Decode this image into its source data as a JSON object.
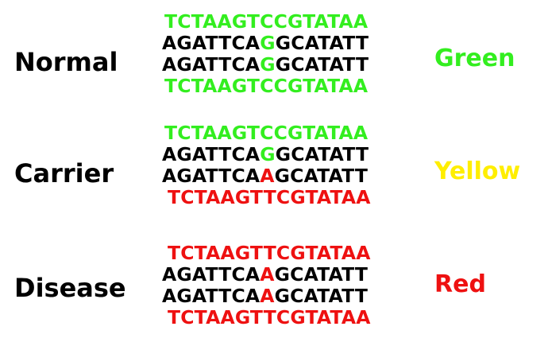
{
  "colors": {
    "green": "#33ee1f",
    "yellow": "#ffee00",
    "red": "#ee1111",
    "black": "#000000"
  },
  "groups": [
    {
      "label": "Normal",
      "color_word": "Green",
      "color_word_color": "#33ee1f",
      "strands": [
        {
          "pos": "top",
          "segments": [
            {
              "text": "TCTAAGTCCGTATAA",
              "color": "#33ee1f"
            }
          ]
        },
        {
          "pos": "middle",
          "segments": [
            {
              "text": "AGATTCA",
              "color": "#000000"
            },
            {
              "text": "G",
              "color": "#33ee1f"
            },
            {
              "text": "GCATATT",
              "color": "#000000"
            }
          ]
        },
        {
          "pos": "middle",
          "segments": [
            {
              "text": "AGATTCA",
              "color": "#000000"
            },
            {
              "text": "G",
              "color": "#33ee1f"
            },
            {
              "text": "GCATATT",
              "color": "#000000"
            }
          ]
        },
        {
          "pos": "bottom",
          "segments": [
            {
              "text": "TCTAAGTCCGTATAA",
              "color": "#33ee1f"
            }
          ]
        }
      ]
    },
    {
      "label": "Carrier",
      "color_word": "Yellow",
      "color_word_color": "#ffee00",
      "strands": [
        {
          "pos": "top",
          "segments": [
            {
              "text": "TCTAAGTCCGTATAA",
              "color": "#33ee1f"
            }
          ]
        },
        {
          "pos": "middle",
          "segments": [
            {
              "text": "AGATTCA",
              "color": "#000000"
            },
            {
              "text": "G",
              "color": "#33ee1f"
            },
            {
              "text": "GCATATT",
              "color": "#000000"
            }
          ]
        },
        {
          "pos": "middle",
          "segments": [
            {
              "text": "AGATTCA",
              "color": "#000000"
            },
            {
              "text": "A",
              "color": "#ee1111"
            },
            {
              "text": "GCATATT",
              "color": "#000000"
            }
          ]
        },
        {
          "pos": "bottom",
          "segments": [
            {
              "text": "TCTAAGTTCGTATAA",
              "color": "#ee1111"
            }
          ]
        }
      ]
    },
    {
      "label": "Disease",
      "color_word": "Red",
      "color_word_color": "#ee1111",
      "strands": [
        {
          "pos": "top",
          "segments": [
            {
              "text": "TCTAAGTTCGTATAA",
              "color": "#ee1111"
            }
          ]
        },
        {
          "pos": "middle",
          "segments": [
            {
              "text": "AGATTCA",
              "color": "#000000"
            },
            {
              "text": "A",
              "color": "#ee1111"
            },
            {
              "text": "GCATATT",
              "color": "#000000"
            }
          ]
        },
        {
          "pos": "middle",
          "segments": [
            {
              "text": "AGATTCA",
              "color": "#000000"
            },
            {
              "text": "A",
              "color": "#ee1111"
            },
            {
              "text": "GCATATT",
              "color": "#000000"
            }
          ]
        },
        {
          "pos": "bottom",
          "segments": [
            {
              "text": "TCTAAGTTCGTATAA",
              "color": "#ee1111"
            }
          ]
        }
      ]
    }
  ]
}
